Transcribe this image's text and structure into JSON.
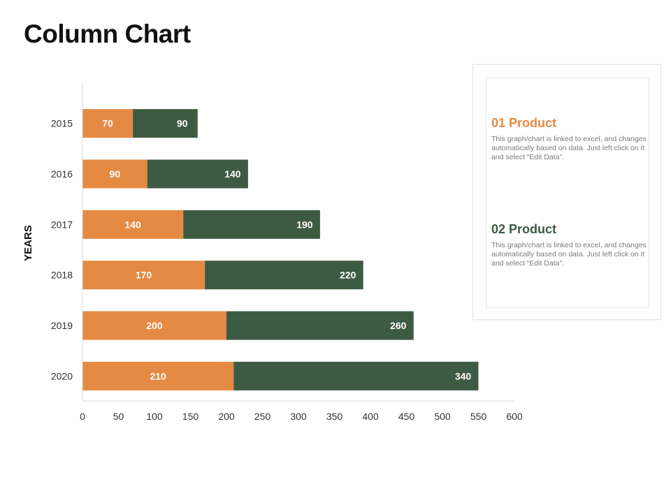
{
  "page": {
    "title": "Column Chart"
  },
  "colors": {
    "series1": "#E58A43",
    "series2": "#3D5B43",
    "axis_text": "#333333",
    "gridline": "#d9d9d9"
  },
  "legend_card": {
    "products": [
      {
        "title": "01 Product",
        "description": "This graph/chart is linked to excel, and changes automatically based on data. Just left click on it and select “Edit Data”.",
        "color": "#E58A43"
      },
      {
        "title": "02 Product",
        "description": "This graph/chart is linked to excel, and changes automatically based on data. Just left click on it and select “Edit Data”.",
        "color": "#3D5B43"
      }
    ]
  },
  "chart_data": {
    "type": "bar",
    "orientation": "horizontal",
    "stacked": true,
    "title": "Column Chart",
    "ylabel": "YEARS",
    "xlabel": "",
    "categories": [
      "2015",
      "2016",
      "2017",
      "2018",
      "2019",
      "2020"
    ],
    "series": [
      {
        "name": "01 Product",
        "values": [
          70,
          90,
          140,
          170,
          200,
          210
        ]
      },
      {
        "name": "02 Product",
        "values": [
          90,
          140,
          190,
          220,
          260,
          340
        ]
      }
    ],
    "xlim": [
      0,
      600
    ],
    "xticks": [
      0,
      50,
      100,
      150,
      200,
      250,
      300,
      350,
      400,
      450,
      500,
      550,
      600
    ],
    "grid": false
  }
}
